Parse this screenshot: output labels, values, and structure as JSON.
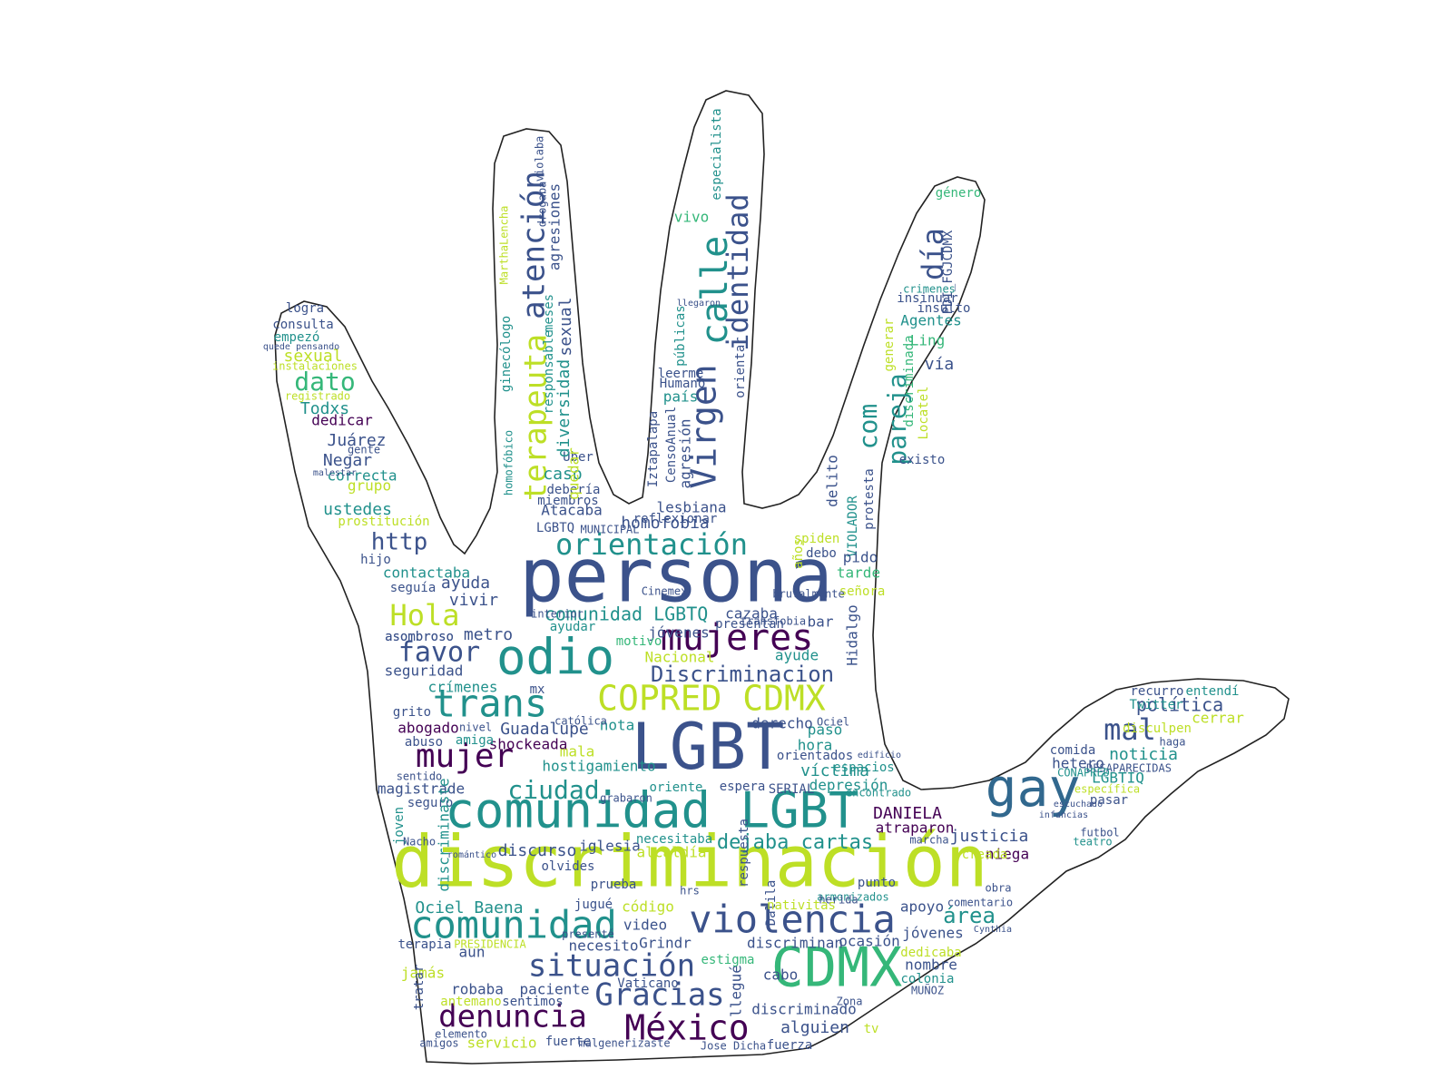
{
  "palette": {
    "dark_purple": "#440154",
    "indigo": "#3b528b",
    "blue": "#31688e",
    "teal": "#21918c",
    "green": "#35b779",
    "lime": "#90d743",
    "yellow": "#bddf26",
    "outline": "#222222",
    "background": "#ffffff"
  },
  "words": [
    "discriminación",
    "persona",
    "LGBT",
    "comunidad LGBT",
    "CDMX",
    "COPRED CDMX",
    "gay",
    "odio",
    "mujeres",
    "trans",
    "comunidad",
    "violencia",
    "situación",
    "denuncia",
    "México",
    "Gracias",
    "Virgen",
    "calle",
    "identidad",
    "atención",
    "terapeuta",
    "orientación",
    "mujer",
    "ciudad",
    "favor",
    "Hola",
    "Discriminacion",
    "http",
    "dato",
    "pareja",
    "día",
    "com",
    "mal",
    "política",
    "área",
    "noticia",
    "hetero",
    "LGBTIQ",
    "Guadalupe",
    "abogado",
    "crímenes",
    "seguridad",
    "magistrade",
    "seguro",
    "discurso",
    "iglesia",
    "dejaba cartas",
    "justicia",
    "niega",
    "atraparon",
    "DANIELA",
    "víctima",
    "depresión",
    "SERIAL",
    "hora",
    "paso",
    "derecho",
    "orientados",
    "hostigamiento",
    "mala",
    "nota",
    "shockeada",
    "amiga",
    "abuso",
    "mx",
    "vivir",
    "metro",
    "ayuda",
    "contactaba",
    "seguía",
    "hijo",
    "prostitución",
    "ustedes",
    "grupo",
    "correcta",
    "Negar",
    "Juárez",
    "Todxs",
    "dedicar",
    "sexual",
    "empezó",
    "consulta",
    "logra",
    "homofobia",
    "lesbiana",
    "Atacaba",
    "miembros",
    "debería",
    "caso",
    "Uber",
    "diversidad",
    "sexual",
    "responsable",
    "agresiones",
    "Iztapalapa",
    "CensoAnual",
    "agresión",
    "país",
    "Humano",
    "leerme",
    "vivo",
    "públicas",
    "orientar",
    "especialista",
    "delito",
    "VIOLADOR",
    "protesta",
    "discriminada",
    "Locatel",
    "vía",
    "Ling",
    "Agentes",
    "insulto",
    "insinuar",
    "crimenes",
    "PDI_FGJCDMX",
    "género",
    "pido",
    "tarde",
    "señora",
    "spiden",
    "debo",
    "bar",
    "Hidalgo",
    "ayude",
    "años",
    "comunidad LGBTQ",
    "cazaba",
    "jóvenes",
    "ayudar",
    "motivo",
    "Nacional",
    "Ociel Baena",
    "jamás",
    "terapia",
    "aun",
    "robaba",
    "antemano",
    "sentimos",
    "paciente",
    "servicio",
    "fuerte",
    "elemento",
    "amigos",
    "necesito",
    "Grindr",
    "video",
    "código",
    "jugué",
    "prueba",
    "olvides",
    "alcaldía",
    "necesitaba",
    "respuesta",
    "Dalila",
    "llegué",
    "cabo",
    "discriminado",
    "alguien",
    "fuerza",
    "discriminan",
    "ocasión",
    "nombre",
    "colonia",
    "dedicaba",
    "jóvenes",
    "apoyo",
    "comentario",
    "obra",
    "creada",
    "armonizados",
    "punto",
    "herida",
    "nativitas",
    "Twitter",
    "disculpen",
    "comida",
    "recurro",
    "entendí",
    "cerrar",
    "haga",
    "pasar",
    "específica",
    "futbol",
    "teatro",
    "Cinemex",
    "católica",
    "nivel",
    "joven",
    "discriminaste",
    "sentido",
    "grito",
    "asombroso",
    "reflexionar",
    "MarthaLencha",
    "ginecólogo",
    "homofóbico",
    "registrado",
    "instalaciones",
    "quede pensando",
    "Vaticano",
    "tratar",
    "PRESIDENCIA",
    "hrs",
    "MUNICIPAL",
    "LGBTQ",
    "presentan",
    "encontrado",
    "oriente",
    "grabaron",
    "marcha",
    "espera",
    "edificio",
    "existo",
    "generar",
    "Cynthia",
    "estigma",
    "drogaba",
    "violaba",
    "tv",
    "Jose Dicha",
    "malgenerizaste",
    "presenté",
    "interior",
    "Nacho",
    "asombroso",
    "quedar",
    "meses",
    "MUÑOZ",
    "Zona",
    "gente",
    "malestar",
    "llegaron",
    "Ociel",
    "transfobia",
    "espacios",
    "brutalmente",
    "romántico",
    "DESAPARECIDAS",
    "CONAPRED",
    "infancias",
    "escuchado"
  ],
  "hand_outline": "hand-icon"
}
